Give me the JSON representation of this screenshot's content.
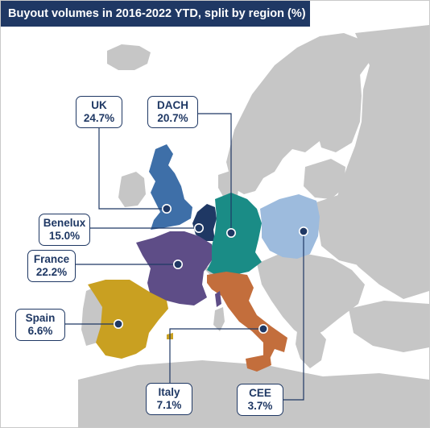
{
  "title": "Buyout volumes in 2016-2022 YTD, split by region (%)",
  "colors": {
    "title_bg": "#1f3864",
    "land": "#c6c6c6",
    "sea": "#ffffff",
    "uk": "#3e6fa8",
    "benelux": "#1f3864",
    "dach": "#1a8c86",
    "cee": "#9dbbdd",
    "france": "#5e4d87",
    "spain": "#c9a021",
    "italy": "#c36e3c"
  },
  "regions": [
    {
      "id": "uk",
      "name": "UK",
      "value": "24.7%"
    },
    {
      "id": "dach",
      "name": "DACH",
      "value": "20.7%"
    },
    {
      "id": "benelux",
      "name": "Benelux",
      "value": "15.0%"
    },
    {
      "id": "france",
      "name": "France",
      "value": "22.2%"
    },
    {
      "id": "spain",
      "name": "Spain",
      "value": "6.6%"
    },
    {
      "id": "italy",
      "name": "Italy",
      "value": "7.1%"
    },
    {
      "id": "cee",
      "name": "CEE",
      "value": "3.7%"
    }
  ]
}
